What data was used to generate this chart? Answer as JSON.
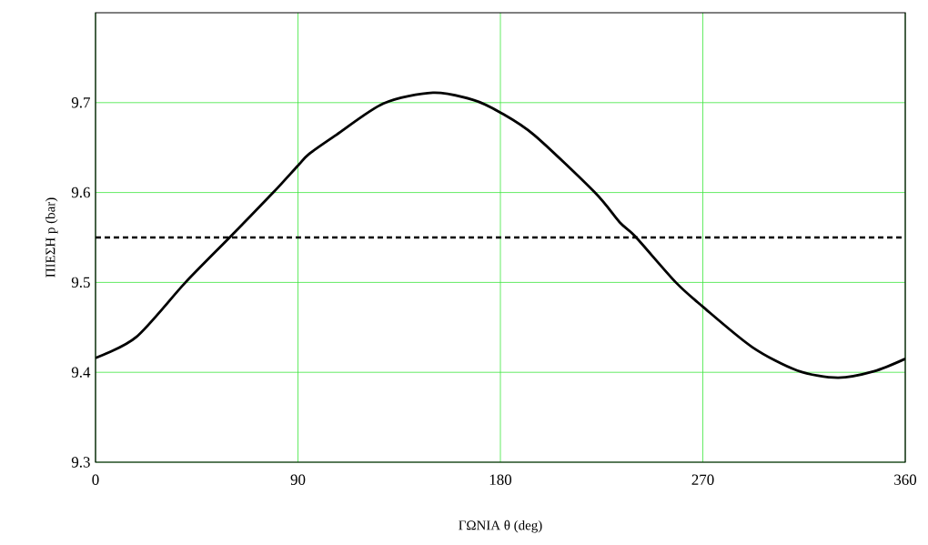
{
  "chart_data": {
    "type": "line",
    "xlabel": "ΓΩΝΙΑ θ (deg)",
    "ylabel": "ΠΙΕΣΗ p (bar)",
    "x": [
      0,
      18,
      40,
      60,
      79,
      90,
      95,
      107,
      128,
      150,
      168,
      180,
      195,
      222,
      233,
      240,
      258,
      270,
      292,
      312,
      330,
      346,
      360
    ],
    "series": [
      {
        "color": "#000000",
        "values": [
          9.416,
          9.439,
          9.5,
          9.551,
          9.6,
          9.63,
          9.643,
          9.664,
          9.699,
          9.711,
          9.703,
          9.689,
          9.664,
          9.6,
          9.567,
          9.551,
          9.5,
          9.473,
          9.428,
          9.402,
          9.394,
          9.401,
          9.415
        ]
      }
    ],
    "xlim": [
      0,
      360
    ],
    "ylim": [
      9.3,
      9.8
    ],
    "xticks": [
      0,
      90,
      180,
      270,
      360
    ],
    "yticks": [
      9.3,
      9.4,
      9.5,
      9.6,
      9.7
    ],
    "grid": true,
    "line_style": "solid",
    "marker": "none",
    "ref_lines": [
      {
        "axis": "y",
        "value": 9.55,
        "color": "#000000",
        "line_style": "dashed"
      }
    ]
  }
}
